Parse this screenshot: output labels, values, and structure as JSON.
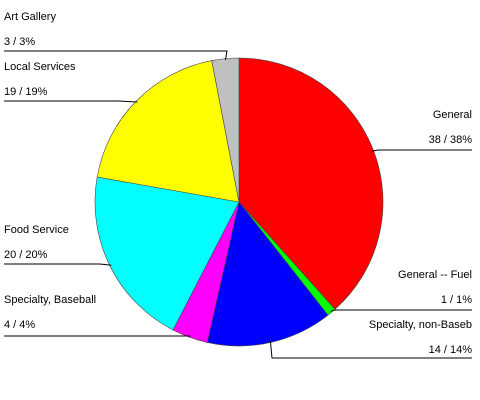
{
  "chart_data": {
    "type": "pie",
    "start_angle_deg": 0,
    "direction": "clockwise",
    "slices": [
      {
        "label": "General",
        "value": 38,
        "value_text": "38 / 38%",
        "color": "#ff0000"
      },
      {
        "label": "General -- Fuel",
        "value": 1,
        "value_text": "1 / 1%",
        "color": "#00ff00"
      },
      {
        "label": "Specialty, non-Baseb",
        "value": 14,
        "value_text": "14 / 14%",
        "color": "#0000ff"
      },
      {
        "label": "Specialty, Baseball",
        "value": 4,
        "value_text": "4 / 4%",
        "color": "#ff00ff"
      },
      {
        "label": "Food Service",
        "value": 20,
        "value_text": "20 / 20%",
        "color": "#00ffff"
      },
      {
        "label": "Local Services",
        "value": 19,
        "value_text": "19 / 19%",
        "color": "#ffff00"
      },
      {
        "label": "Art Gallery",
        "value": 3,
        "value_text": "3 / 3%",
        "color": "#c0c0c0"
      }
    ]
  }
}
